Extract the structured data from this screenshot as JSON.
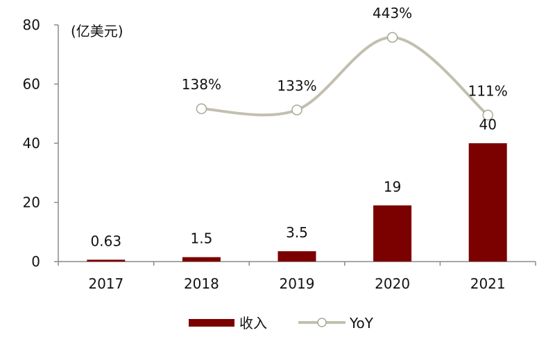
{
  "chart_data": {
    "type": "bar",
    "unit_label": "(亿美元)",
    "categories": [
      "2017",
      "2018",
      "2019",
      "2020",
      "2021"
    ],
    "ylim": [
      0,
      80
    ],
    "yticks": [
      "0",
      "20",
      "40",
      "60",
      "80"
    ],
    "series": [
      {
        "name": "收入",
        "kind": "bar",
        "color": "#7b0000",
        "values": [
          0.63,
          1.5,
          3.5,
          19,
          40
        ],
        "labels": [
          "0.63",
          "1.5",
          "3.5",
          "19",
          "40"
        ]
      },
      {
        "name": "YoY",
        "kind": "line",
        "color": "#c2c0ad",
        "values": [
          null,
          1.38,
          1.33,
          4.43,
          1.11
        ],
        "labels": [
          "",
          "138%",
          "133%",
          "443%",
          "111%"
        ]
      }
    ],
    "legend_position": "bottom",
    "grid": false
  }
}
